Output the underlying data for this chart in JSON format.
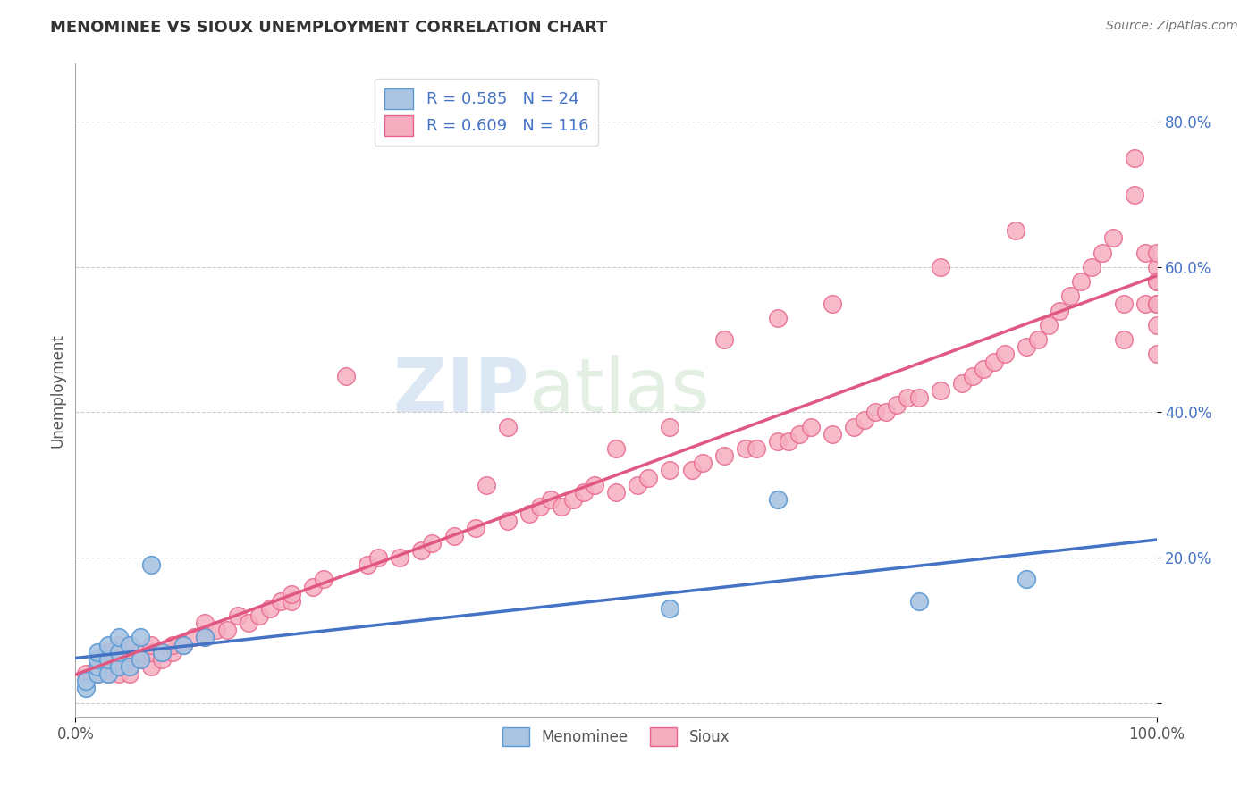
{
  "title": "MENOMINEE VS SIOUX UNEMPLOYMENT CORRELATION CHART",
  "source_text": "Source: ZipAtlas.com",
  "ylabel": "Unemployment",
  "xlim": [
    0.0,
    1.0
  ],
  "ylim": [
    -0.02,
    0.88
  ],
  "ytick_positions": [
    0.0,
    0.2,
    0.4,
    0.6,
    0.8
  ],
  "ytick_labels": [
    "",
    "20.0%",
    "40.0%",
    "60.0%",
    "80.0%"
  ],
  "xtick_positions": [
    0.0,
    1.0
  ],
  "xtick_labels": [
    "0.0%",
    "100.0%"
  ],
  "background_color": "#ffffff",
  "grid_color": "#cccccc",
  "watermark_zip": "ZIP",
  "watermark_atlas": "atlas",
  "menominee_color": "#aac4e2",
  "sioux_color": "#f5aec0",
  "menominee_edge_color": "#5b9bd5",
  "sioux_edge_color": "#e8648a",
  "menominee_line_color": "#4472c4",
  "sioux_line_color": "#e05882",
  "legend_label_color": "#4472c4",
  "legend_menominee": "R = 0.585   N = 24",
  "legend_sioux": "R = 0.609   N = 116",
  "menominee_x": [
    0.01,
    0.01,
    0.02,
    0.02,
    0.02,
    0.02,
    0.03,
    0.03,
    0.03,
    0.04,
    0.04,
    0.04,
    0.05,
    0.05,
    0.06,
    0.06,
    0.07,
    0.08,
    0.1,
    0.12,
    0.55,
    0.65,
    0.78,
    0.88
  ],
  "menominee_y": [
    0.02,
    0.03,
    0.04,
    0.05,
    0.06,
    0.07,
    0.04,
    0.06,
    0.08,
    0.05,
    0.07,
    0.09,
    0.05,
    0.08,
    0.06,
    0.09,
    0.19,
    0.07,
    0.08,
    0.09,
    0.13,
    0.28,
    0.14,
    0.17
  ],
  "sioux_x": [
    0.01,
    0.02,
    0.02,
    0.02,
    0.03,
    0.03,
    0.03,
    0.03,
    0.04,
    0.04,
    0.04,
    0.04,
    0.04,
    0.05,
    0.05,
    0.05,
    0.05,
    0.06,
    0.06,
    0.07,
    0.07,
    0.07,
    0.08,
    0.08,
    0.09,
    0.09,
    0.1,
    0.11,
    0.12,
    0.12,
    0.13,
    0.14,
    0.15,
    0.16,
    0.17,
    0.18,
    0.19,
    0.2,
    0.2,
    0.22,
    0.23,
    0.25,
    0.27,
    0.28,
    0.3,
    0.32,
    0.33,
    0.35,
    0.37,
    0.38,
    0.4,
    0.4,
    0.42,
    0.43,
    0.44,
    0.45,
    0.46,
    0.47,
    0.48,
    0.5,
    0.5,
    0.52,
    0.53,
    0.55,
    0.55,
    0.57,
    0.58,
    0.6,
    0.6,
    0.62,
    0.63,
    0.65,
    0.65,
    0.66,
    0.67,
    0.68,
    0.7,
    0.7,
    0.72,
    0.73,
    0.74,
    0.75,
    0.76,
    0.77,
    0.78,
    0.8,
    0.8,
    0.82,
    0.83,
    0.84,
    0.85,
    0.86,
    0.87,
    0.88,
    0.89,
    0.9,
    0.91,
    0.92,
    0.93,
    0.94,
    0.95,
    0.96,
    0.97,
    0.97,
    0.98,
    0.98,
    0.99,
    0.99,
    1.0,
    1.0,
    1.0,
    1.0,
    1.0,
    1.0,
    1.0,
    1.0
  ],
  "sioux_y": [
    0.04,
    0.05,
    0.04,
    0.06,
    0.04,
    0.05,
    0.06,
    0.07,
    0.04,
    0.05,
    0.06,
    0.07,
    0.08,
    0.04,
    0.06,
    0.07,
    0.08,
    0.06,
    0.07,
    0.05,
    0.07,
    0.08,
    0.06,
    0.07,
    0.07,
    0.08,
    0.08,
    0.09,
    0.09,
    0.11,
    0.1,
    0.1,
    0.12,
    0.11,
    0.12,
    0.13,
    0.14,
    0.14,
    0.15,
    0.16,
    0.17,
    0.45,
    0.19,
    0.2,
    0.2,
    0.21,
    0.22,
    0.23,
    0.24,
    0.3,
    0.25,
    0.38,
    0.26,
    0.27,
    0.28,
    0.27,
    0.28,
    0.29,
    0.3,
    0.29,
    0.35,
    0.3,
    0.31,
    0.32,
    0.38,
    0.32,
    0.33,
    0.34,
    0.5,
    0.35,
    0.35,
    0.36,
    0.53,
    0.36,
    0.37,
    0.38,
    0.37,
    0.55,
    0.38,
    0.39,
    0.4,
    0.4,
    0.41,
    0.42,
    0.42,
    0.43,
    0.6,
    0.44,
    0.45,
    0.46,
    0.47,
    0.48,
    0.65,
    0.49,
    0.5,
    0.52,
    0.54,
    0.56,
    0.58,
    0.6,
    0.62,
    0.64,
    0.55,
    0.5,
    0.7,
    0.75,
    0.62,
    0.55,
    0.58,
    0.55,
    0.6,
    0.62,
    0.48,
    0.52,
    0.55,
    0.58
  ]
}
